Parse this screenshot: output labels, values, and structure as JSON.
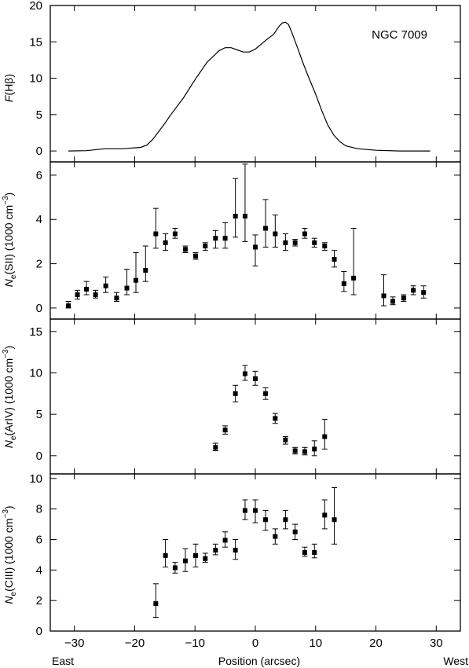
{
  "chart_data": {
    "type": "scatter",
    "xlabel": "Position (arcsec)",
    "xlim": [
      -34,
      34
    ],
    "x_ticks": [
      -30,
      -20,
      -10,
      0,
      10,
      20,
      30
    ],
    "x_tick_labels": [
      "−30",
      "−20",
      "−10",
      "0",
      "10",
      "20",
      "30"
    ],
    "left_label": "East",
    "right_label": "West",
    "panels": [
      {
        "id": "hbeta",
        "kind": "line",
        "ylabel_main": "F",
        "ylabel_rest": "(Hβ)",
        "annotation": "NGC 7009",
        "ylim": [
          -1.5,
          20
        ],
        "y_ticks": [
          0,
          5,
          10,
          15,
          20
        ],
        "x": [
          -31,
          -28,
          -25,
          -22,
          -19,
          -18,
          -17,
          -16,
          -15,
          -14,
          -12,
          -10,
          -8,
          -7,
          -6,
          -5,
          -4,
          -3,
          -2,
          -1,
          0,
          1,
          2,
          3,
          4,
          4.5,
          5,
          5.5,
          6,
          7,
          8,
          9,
          10,
          11,
          12,
          13,
          14,
          15,
          17,
          20,
          24,
          28,
          29
        ],
        "y": [
          0,
          0.05,
          0.3,
          0.3,
          0.5,
          0.8,
          1.6,
          2.7,
          3.8,
          5.0,
          7.2,
          9.8,
          12.2,
          13.0,
          13.8,
          14.2,
          14.2,
          13.9,
          13.6,
          13.6,
          14.0,
          14.7,
          15.4,
          16.0,
          17.2,
          17.6,
          17.7,
          17.4,
          16.4,
          14.2,
          11.9,
          9.8,
          7.8,
          5.6,
          3.6,
          2.2,
          1.3,
          0.7,
          0.3,
          0.1,
          0.0,
          0.0,
          0.0
        ]
      },
      {
        "id": "sii",
        "kind": "points",
        "ylabel_main": "N",
        "ylabel_sub": "e",
        "ylabel_rest": "(SII) (1000 cm",
        "ylabel_sup": "−3",
        "ylabel_close": ")",
        "ylim": [
          -0.5,
          6.6
        ],
        "y_ticks": [
          0,
          2,
          4,
          6
        ],
        "points": [
          {
            "x": -31.0,
            "y": 0.1,
            "lo": 0.0,
            "hi": 0.3
          },
          {
            "x": -29.5,
            "y": 0.6,
            "lo": 0.4,
            "hi": 0.8
          },
          {
            "x": -28.0,
            "y": 0.85,
            "lo": 0.6,
            "hi": 1.2
          },
          {
            "x": -26.5,
            "y": 0.6,
            "lo": 0.45,
            "hi": 0.8
          },
          {
            "x": -24.8,
            "y": 1.0,
            "lo": 0.7,
            "hi": 1.4
          },
          {
            "x": -23.0,
            "y": 0.45,
            "lo": 0.3,
            "hi": 0.7
          },
          {
            "x": -21.3,
            "y": 0.9,
            "lo": 0.6,
            "hi": 1.75
          },
          {
            "x": -19.8,
            "y": 1.25,
            "lo": 0.7,
            "hi": 2.5
          },
          {
            "x": -18.2,
            "y": 1.7,
            "lo": 1.2,
            "hi": 2.8
          },
          {
            "x": -16.5,
            "y": 3.35,
            "lo": 2.7,
            "hi": 4.5
          },
          {
            "x": -14.9,
            "y": 2.95,
            "lo": 2.6,
            "hi": 3.35
          },
          {
            "x": -13.3,
            "y": 3.35,
            "lo": 3.15,
            "hi": 3.6
          },
          {
            "x": -11.6,
            "y": 2.65,
            "lo": 2.5,
            "hi": 2.8
          },
          {
            "x": -9.9,
            "y": 2.35,
            "lo": 2.2,
            "hi": 2.5
          },
          {
            "x": -8.3,
            "y": 2.8,
            "lo": 2.6,
            "hi": 2.95
          },
          {
            "x": -6.6,
            "y": 3.15,
            "lo": 2.7,
            "hi": 3.5
          },
          {
            "x": -5.0,
            "y": 3.15,
            "lo": 2.7,
            "hi": 3.85
          },
          {
            "x": -3.3,
            "y": 4.15,
            "lo": 3.2,
            "hi": 5.85
          },
          {
            "x": -1.7,
            "y": 4.15,
            "lo": 3.0,
            "hi": 6.5
          },
          {
            "x": 0.0,
            "y": 2.75,
            "lo": 1.9,
            "hi": 3.3
          },
          {
            "x": 1.7,
            "y": 3.6,
            "lo": 2.75,
            "hi": 4.9
          },
          {
            "x": 3.3,
            "y": 3.35,
            "lo": 2.75,
            "hi": 4.2
          },
          {
            "x": 5.0,
            "y": 2.95,
            "lo": 2.6,
            "hi": 3.35
          },
          {
            "x": 6.6,
            "y": 2.95,
            "lo": 2.8,
            "hi": 3.1
          },
          {
            "x": 8.2,
            "y": 3.35,
            "lo": 3.15,
            "hi": 3.6
          },
          {
            "x": 9.8,
            "y": 2.95,
            "lo": 2.75,
            "hi": 3.15
          },
          {
            "x": 11.5,
            "y": 2.8,
            "lo": 2.6,
            "hi": 2.95
          },
          {
            "x": 13.1,
            "y": 2.2,
            "lo": 1.85,
            "hi": 2.6
          },
          {
            "x": 14.7,
            "y": 1.1,
            "lo": 0.75,
            "hi": 1.65
          },
          {
            "x": 16.3,
            "y": 1.35,
            "lo": 0.6,
            "hi": 3.6
          },
          {
            "x": 21.3,
            "y": 0.55,
            "lo": 0.1,
            "hi": 1.5
          },
          {
            "x": 22.8,
            "y": 0.3,
            "lo": 0.15,
            "hi": 0.5
          },
          {
            "x": 24.6,
            "y": 0.45,
            "lo": 0.3,
            "hi": 0.6
          },
          {
            "x": 26.2,
            "y": 0.8,
            "lo": 0.6,
            "hi": 1.0
          },
          {
            "x": 27.9,
            "y": 0.7,
            "lo": 0.45,
            "hi": 1.0
          }
        ]
      },
      {
        "id": "ariv",
        "kind": "points",
        "ylabel_main": "N",
        "ylabel_sub": "e",
        "ylabel_rest": "(ArIV) (1000 cm",
        "ylabel_sup": "−3",
        "ylabel_close": ")",
        "ylim": [
          -2.2,
          16.5
        ],
        "y_ticks": [
          0,
          5,
          10,
          15
        ],
        "points": [
          {
            "x": -6.6,
            "y": 1.0,
            "lo": 0.6,
            "hi": 1.5
          },
          {
            "x": -5.0,
            "y": 3.1,
            "lo": 2.6,
            "hi": 3.6
          },
          {
            "x": -3.3,
            "y": 7.5,
            "lo": 6.5,
            "hi": 8.5
          },
          {
            "x": -1.7,
            "y": 9.9,
            "lo": 9.1,
            "hi": 10.9
          },
          {
            "x": 0.0,
            "y": 9.3,
            "lo": 8.5,
            "hi": 10.2
          },
          {
            "x": 1.7,
            "y": 7.5,
            "lo": 6.8,
            "hi": 8.2
          },
          {
            "x": 3.3,
            "y": 4.5,
            "lo": 3.9,
            "hi": 5.1
          },
          {
            "x": 5.0,
            "y": 1.9,
            "lo": 1.4,
            "hi": 2.3
          },
          {
            "x": 6.6,
            "y": 0.6,
            "lo": 0.2,
            "hi": 1.0
          },
          {
            "x": 8.2,
            "y": 0.5,
            "lo": 0.1,
            "hi": 1.0
          },
          {
            "x": 9.8,
            "y": 0.8,
            "lo": 0.0,
            "hi": 1.8
          },
          {
            "x": 11.5,
            "y": 2.3,
            "lo": 0.8,
            "hi": 4.4
          }
        ]
      },
      {
        "id": "ciii",
        "kind": "points",
        "ylabel_main": "N",
        "ylabel_sub": "e",
        "ylabel_rest": "(CIII) (1000 cm",
        "ylabel_sup": "−3",
        "ylabel_close": ")",
        "ylim": [
          0,
          10.3
        ],
        "y_ticks": [
          0,
          2,
          4,
          6,
          8,
          10
        ],
        "points": [
          {
            "x": -16.5,
            "y": 1.8,
            "lo": 0.9,
            "hi": 3.1
          },
          {
            "x": -14.9,
            "y": 4.95,
            "lo": 4.2,
            "hi": 6.0
          },
          {
            "x": -13.3,
            "y": 4.15,
            "lo": 3.8,
            "hi": 4.5
          },
          {
            "x": -11.6,
            "y": 4.6,
            "lo": 3.9,
            "hi": 5.4
          },
          {
            "x": -9.9,
            "y": 4.95,
            "lo": 4.2,
            "hi": 5.7
          },
          {
            "x": -8.3,
            "y": 4.75,
            "lo": 4.5,
            "hi": 5.1
          },
          {
            "x": -6.6,
            "y": 5.3,
            "lo": 5.0,
            "hi": 5.7
          },
          {
            "x": -5.0,
            "y": 5.95,
            "lo": 5.5,
            "hi": 6.5
          },
          {
            "x": -3.3,
            "y": 5.3,
            "lo": 4.7,
            "hi": 6.0
          },
          {
            "x": -1.7,
            "y": 7.9,
            "lo": 7.3,
            "hi": 8.6
          },
          {
            "x": 0.0,
            "y": 7.9,
            "lo": 7.1,
            "hi": 8.6
          },
          {
            "x": 1.7,
            "y": 7.3,
            "lo": 6.6,
            "hi": 7.9
          },
          {
            "x": 3.3,
            "y": 6.2,
            "lo": 5.7,
            "hi": 6.7
          },
          {
            "x": 5.0,
            "y": 7.3,
            "lo": 6.7,
            "hi": 7.9
          },
          {
            "x": 6.6,
            "y": 6.5,
            "lo": 6.0,
            "hi": 7.0
          },
          {
            "x": 8.2,
            "y": 5.15,
            "lo": 4.9,
            "hi": 5.5
          },
          {
            "x": 9.8,
            "y": 5.15,
            "lo": 4.8,
            "hi": 5.7
          },
          {
            "x": 11.5,
            "y": 7.6,
            "lo": 6.7,
            "hi": 8.6
          },
          {
            "x": 13.1,
            "y": 7.3,
            "lo": 5.7,
            "hi": 9.4
          }
        ]
      }
    ]
  }
}
